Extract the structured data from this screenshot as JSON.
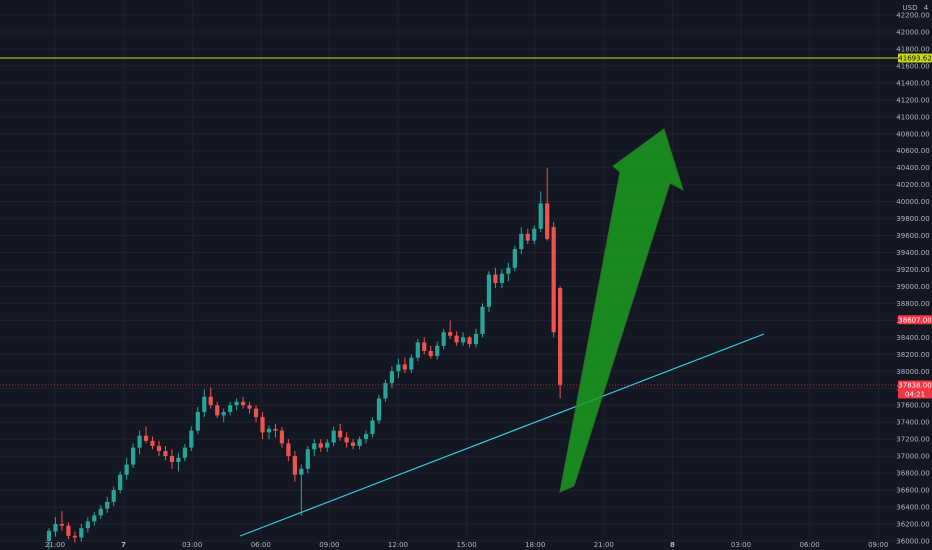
{
  "chart_data": {
    "type": "candlestick",
    "symbol_pair_currency": "USD",
    "y_axis_top_label": "4",
    "x_tick_labels": [
      "21:00",
      "7",
      "03:00",
      "06:00",
      "09:00",
      "12:00",
      "15:00",
      "18:00",
      "21:00",
      "8",
      "03:00",
      "06:00",
      "09:00"
    ],
    "y_tick_labels": [
      "36000.00",
      "36200.00",
      "36400.00",
      "36600.00",
      "36800.00",
      "37000.00",
      "37200.00",
      "37400.00",
      "37600.00",
      "37800.00",
      "38000.00",
      "38200.00",
      "38400.00",
      "38600.00",
      "38800.00",
      "39000.00",
      "39200.00",
      "39400.00",
      "39600.00",
      "39800.00",
      "40000.00",
      "40200.00",
      "40400.00",
      "40600.00",
      "40800.00",
      "41000.00",
      "41200.00",
      "41400.00",
      "41600.00",
      "41800.00",
      "42000.00",
      "42200.00"
    ],
    "ylim": [
      35940,
      42330
    ],
    "grid": true,
    "candles": [
      [
        36000,
        36150,
        35900,
        36120
      ],
      [
        36110,
        36280,
        36050,
        36200
      ],
      [
        36200,
        36350,
        36120,
        36180
      ],
      [
        36180,
        36220,
        36020,
        36060
      ],
      [
        36060,
        36110,
        35980,
        36040
      ],
      [
        36040,
        36200,
        35990,
        36150
      ],
      [
        36150,
        36280,
        36100,
        36230
      ],
      [
        36230,
        36340,
        36180,
        36300
      ],
      [
        36300,
        36420,
        36260,
        36380
      ],
      [
        36380,
        36520,
        36330,
        36460
      ],
      [
        36460,
        36640,
        36410,
        36600
      ],
      [
        36600,
        36820,
        36560,
        36780
      ],
      [
        36780,
        36980,
        36720,
        36900
      ],
      [
        36900,
        37150,
        36860,
        37100
      ],
      [
        37100,
        37300,
        37020,
        37240
      ],
      [
        37240,
        37350,
        37150,
        37180
      ],
      [
        37180,
        37230,
        37080,
        37120
      ],
      [
        37120,
        37180,
        37000,
        37060
      ],
      [
        37060,
        37120,
        36950,
        37000
      ],
      [
        37000,
        37080,
        36850,
        36930
      ],
      [
        36930,
        37040,
        36820,
        36980
      ],
      [
        36980,
        37140,
        36940,
        37100
      ],
      [
        37100,
        37350,
        37060,
        37300
      ],
      [
        37300,
        37580,
        37260,
        37520
      ],
      [
        37520,
        37790,
        37460,
        37700
      ],
      [
        37700,
        37810,
        37560,
        37600
      ],
      [
        37600,
        37640,
        37450,
        37480
      ],
      [
        37480,
        37560,
        37400,
        37520
      ],
      [
        37520,
        37640,
        37480,
        37600
      ],
      [
        37600,
        37680,
        37540,
        37640
      ],
      [
        37640,
        37700,
        37560,
        37600
      ],
      [
        37600,
        37640,
        37500,
        37560
      ],
      [
        37560,
        37600,
        37400,
        37460
      ],
      [
        37460,
        37520,
        37200,
        37280
      ],
      [
        37280,
        37360,
        37200,
        37320
      ],
      [
        37320,
        37380,
        37220,
        37300
      ],
      [
        37300,
        37340,
        37100,
        37150
      ],
      [
        37150,
        37200,
        36940,
        37000
      ],
      [
        37000,
        37060,
        36700,
        36780
      ],
      [
        36780,
        36900,
        36300,
        36850
      ],
      [
        36850,
        37120,
        36800,
        37080
      ],
      [
        37080,
        37200,
        37000,
        37150
      ],
      [
        37150,
        37200,
        37050,
        37100
      ],
      [
        37100,
        37200,
        37050,
        37160
      ],
      [
        37160,
        37350,
        37120,
        37300
      ],
      [
        37300,
        37380,
        37180,
        37220
      ],
      [
        37220,
        37280,
        37100,
        37160
      ],
      [
        37160,
        37200,
        37080,
        37120
      ],
      [
        37120,
        37230,
        37080,
        37200
      ],
      [
        37200,
        37300,
        37150,
        37260
      ],
      [
        37260,
        37460,
        37220,
        37420
      ],
      [
        37420,
        37720,
        37380,
        37680
      ],
      [
        37680,
        37900,
        37640,
        37860
      ],
      [
        37860,
        38060,
        37800,
        38000
      ],
      [
        38000,
        38150,
        37920,
        38080
      ],
      [
        38080,
        38160,
        37980,
        38020
      ],
      [
        38020,
        38200,
        37980,
        38160
      ],
      [
        38160,
        38380,
        38120,
        38340
      ],
      [
        38340,
        38400,
        38200,
        38240
      ],
      [
        38240,
        38300,
        38150,
        38180
      ],
      [
        38180,
        38350,
        38140,
        38300
      ],
      [
        38300,
        38500,
        38260,
        38460
      ],
      [
        38460,
        38600,
        38380,
        38420
      ],
      [
        38420,
        38470,
        38300,
        38340
      ],
      [
        38340,
        38460,
        38300,
        38400
      ],
      [
        38400,
        38420,
        38280,
        38320
      ],
      [
        38320,
        38500,
        38280,
        38440
      ],
      [
        38440,
        38800,
        38400,
        38760
      ],
      [
        38760,
        39180,
        38700,
        39140
      ],
      [
        39140,
        39220,
        38980,
        39040
      ],
      [
        39040,
        39200,
        38980,
        39150
      ],
      [
        39150,
        39280,
        39060,
        39220
      ],
      [
        39220,
        39480,
        39180,
        39440
      ],
      [
        39440,
        39700,
        39380,
        39620
      ],
      [
        39620,
        39680,
        39500,
        39540
      ],
      [
        39540,
        39720,
        39500,
        39680
      ],
      [
        39680,
        40120,
        39640,
        39980
      ],
      [
        39980,
        40400,
        39540,
        39560
      ],
      [
        39700,
        39760,
        38400,
        38460
      ],
      [
        38980,
        39000,
        37680,
        37840
      ]
    ]
  },
  "indicators": {
    "horizontal_line_level": "41693.62",
    "horizontal_line_color": "#c9d81a",
    "current_price": "37838.00",
    "current_price_color": "#f23645",
    "countdown": "04:21",
    "prev_close_price": "38607.00",
    "prev_close_color": "#f23645",
    "up_color": "#26a69a",
    "down_color": "#ef5350",
    "trendline_color": "#33c6dd",
    "arrow_color": "#1ba11e"
  }
}
